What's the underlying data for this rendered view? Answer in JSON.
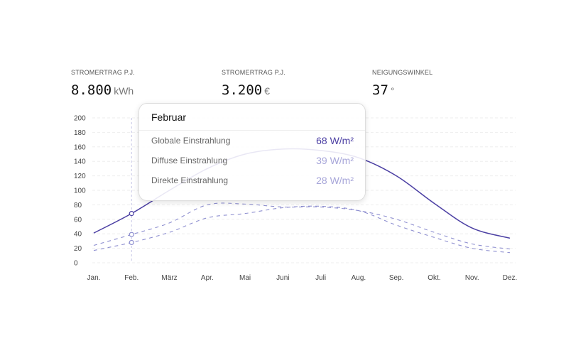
{
  "stats": [
    {
      "label": "STROMERTRAG P.J.",
      "value": "8.800",
      "unit": "kWh"
    },
    {
      "label": "STROMERTRAG P.J.",
      "value": "3.200",
      "unit": "€"
    },
    {
      "label": "NEIGUNGSWINKEL",
      "value": "37",
      "unit": "°"
    }
  ],
  "tooltip": {
    "title": "Februar",
    "rows": [
      {
        "label": "Globale Einstrahlung",
        "value": "68 W/m²",
        "color": "#4b3fa3"
      },
      {
        "label": "Diffuse Einstrahlung",
        "value": "39 W/m²",
        "color": "#a7a6d9"
      },
      {
        "label": "Direkte Einstrahlung",
        "value": "28 W/m²",
        "color": "#a7a6d9"
      }
    ]
  },
  "chart_data": {
    "type": "line",
    "categories": [
      "Jan.",
      "Feb.",
      "März",
      "Apr.",
      "Mai",
      "Juni",
      "Juli",
      "Aug.",
      "Sep.",
      "Okt.",
      "Nov.",
      "Dez."
    ],
    "ylim": [
      0,
      200
    ],
    "yticks": [
      "0",
      "20",
      "40",
      "60",
      "80",
      "100",
      "120",
      "140",
      "160",
      "180",
      "200"
    ],
    "highlight_index": 1,
    "series": [
      {
        "name": "Globale Einstrahlung",
        "style": "solid",
        "color": "#4b3fa3",
        "values": [
          41,
          68,
          100,
          130,
          150,
          157,
          155,
          145,
          120,
          82,
          48,
          34
        ]
      },
      {
        "name": "Diffuse Einstrahlung",
        "style": "dashed",
        "color": "#8e8fd0",
        "values": [
          24,
          39,
          55,
          80,
          81,
          77,
          77,
          72,
          60,
          42,
          26,
          19
        ]
      },
      {
        "name": "Direkte Einstrahlung",
        "style": "dashed",
        "color": "#8e8fd0",
        "values": [
          17,
          28,
          42,
          62,
          68,
          76,
          78,
          72,
          52,
          35,
          20,
          14
        ]
      }
    ]
  }
}
